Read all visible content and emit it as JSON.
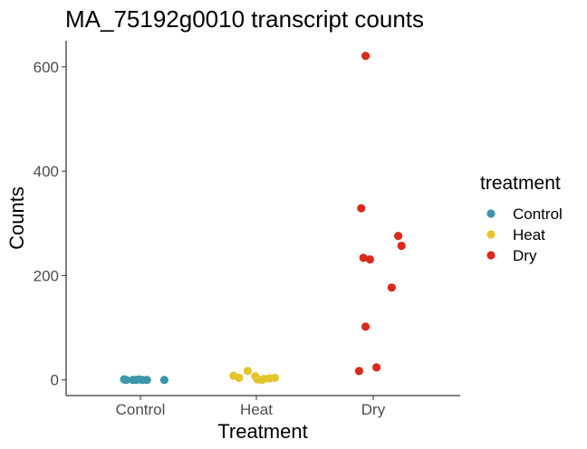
{
  "chart_data": {
    "type": "scatter",
    "title": "MA_75192g0010 transcript counts",
    "xlabel": "Treatment",
    "ylabel": "Counts",
    "categories": [
      "Control",
      "Heat",
      "Dry"
    ],
    "y_ticks": [
      0,
      200,
      400,
      600
    ],
    "ylim": [
      -30,
      650
    ],
    "grid": false,
    "legend": {
      "title": "treatment",
      "placement": "right",
      "entries": [
        {
          "label": "Control",
          "color": "#3E97A9"
        },
        {
          "label": "Heat",
          "color": "#E5C52E"
        },
        {
          "label": "Dry",
          "color": "#D92A1C"
        }
      ]
    },
    "series": [
      {
        "category": "Control",
        "color": "#3E97A9",
        "points": [
          {
            "jitter": -0.3,
            "y": 1
          },
          {
            "jitter": -0.26,
            "y": 0
          },
          {
            "jitter": -0.14,
            "y": 0
          },
          {
            "jitter": -0.08,
            "y": 0
          },
          {
            "jitter": -0.02,
            "y": 1
          },
          {
            "jitter": 0.04,
            "y": 0
          },
          {
            "jitter": 0.12,
            "y": 0
          },
          {
            "jitter": 0.44,
            "y": 0
          }
        ]
      },
      {
        "category": "Heat",
        "color": "#E5C52E",
        "points": [
          {
            "jitter": -0.42,
            "y": 8
          },
          {
            "jitter": -0.32,
            "y": 4
          },
          {
            "jitter": -0.16,
            "y": 17
          },
          {
            "jitter": -0.02,
            "y": 7
          },
          {
            "jitter": 0.02,
            "y": 1
          },
          {
            "jitter": 0.1,
            "y": 0
          },
          {
            "jitter": 0.14,
            "y": 2
          },
          {
            "jitter": 0.24,
            "y": 3
          },
          {
            "jitter": 0.34,
            "y": 4
          }
        ]
      },
      {
        "category": "Dry",
        "color": "#D92A1C",
        "points": [
          {
            "jitter": -0.26,
            "y": 17
          },
          {
            "jitter": -0.22,
            "y": 329
          },
          {
            "jitter": -0.18,
            "y": 234
          },
          {
            "jitter": -0.14,
            "y": 621
          },
          {
            "jitter": -0.14,
            "y": 102
          },
          {
            "jitter": -0.06,
            "y": 231
          },
          {
            "jitter": 0.06,
            "y": 24
          },
          {
            "jitter": 0.34,
            "y": 177
          },
          {
            "jitter": 0.46,
            "y": 276
          },
          {
            "jitter": 0.52,
            "y": 257
          }
        ]
      }
    ]
  }
}
